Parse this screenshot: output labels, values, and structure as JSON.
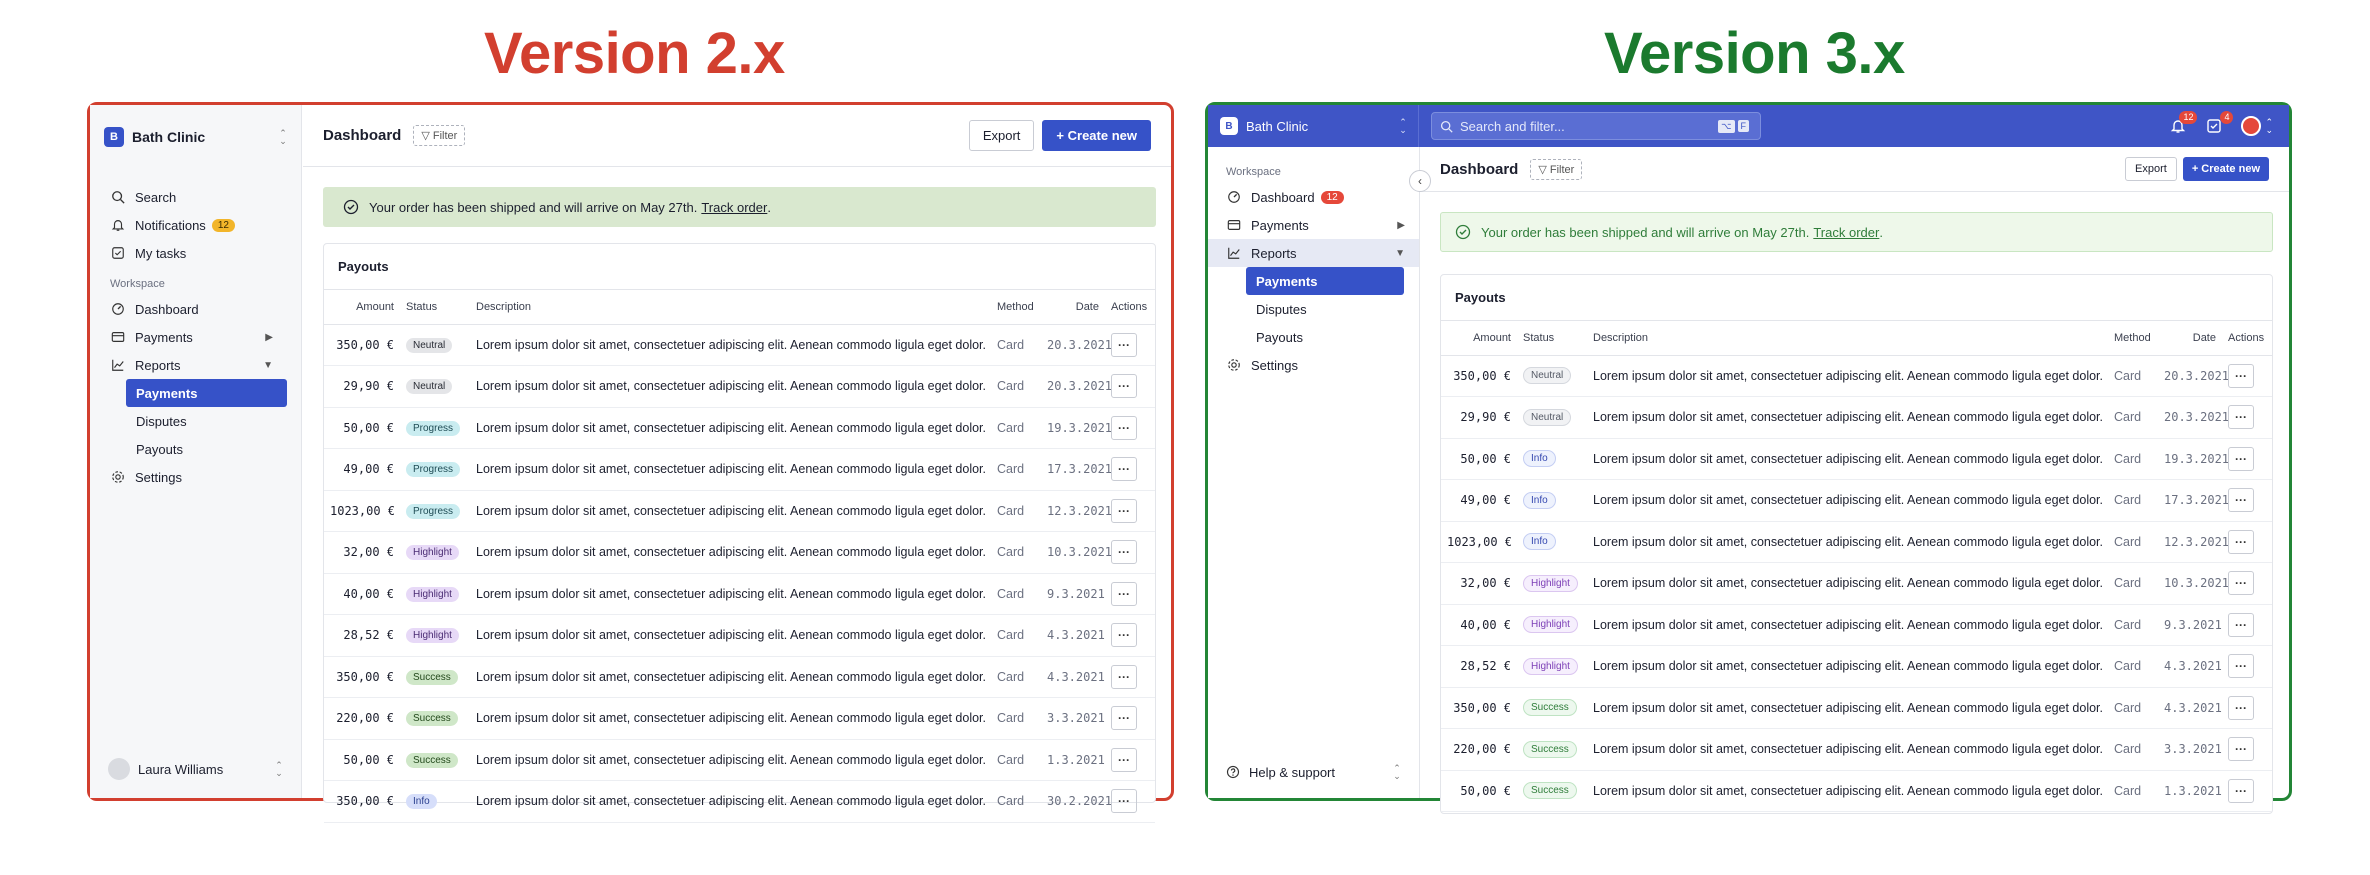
{
  "headings": {
    "v2": "Version 2.x",
    "v3": "Version 3.x"
  },
  "brand": {
    "initial": "B",
    "name": "Bath Clinic"
  },
  "v2": {
    "nav_top": [
      {
        "label": "Search",
        "icon": "search-icon"
      },
      {
        "label": "Notifications",
        "icon": "bell-icon",
        "badge": "12"
      },
      {
        "label": "My tasks",
        "icon": "checkbox-icon"
      }
    ],
    "section": "Workspace",
    "nav": [
      {
        "label": "Dashboard",
        "icon": "dashboard-icon"
      },
      {
        "label": "Payments",
        "icon": "card-icon"
      },
      {
        "label": "Reports",
        "icon": "chart-icon"
      }
    ],
    "sub": [
      "Payments",
      "Disputes",
      "Payouts"
    ],
    "settings": "Settings",
    "user": "Laura Williams",
    "title": "Dashboard",
    "filter": "▽ Filter",
    "export": "Export",
    "create": "+ Create new"
  },
  "v3": {
    "search_placeholder": "Search and filter...",
    "kbd1": "⌥",
    "kbd2": "F",
    "notif_badge": "12",
    "tasks_badge": "4",
    "section": "Workspace",
    "nav": [
      {
        "label": "Dashboard",
        "icon": "dashboard-icon",
        "badge": "12"
      },
      {
        "label": "Payments",
        "icon": "card-icon"
      },
      {
        "label": "Reports",
        "icon": "chart-icon"
      }
    ],
    "sub": [
      "Payments",
      "Disputes",
      "Payouts"
    ],
    "settings": "Settings",
    "help": "Help & support",
    "title": "Dashboard",
    "filter": "▽ Filter",
    "export": "Export",
    "create": "+ Create new"
  },
  "alert": {
    "text": "Your order has been shipped and will arrive on May 27th.",
    "link": "Track order",
    "end": "."
  },
  "table": {
    "title": "Payouts",
    "columns": [
      "Amount",
      "Status",
      "Description",
      "Method",
      "Date",
      "Actions"
    ],
    "description": "Lorem ipsum dolor sit amet, consectetuer adipiscing elit. Aenean commodo ligula eget dolor.",
    "action_label": "···",
    "rows_v2": [
      {
        "amount": "350,00 €",
        "status": "Neutral",
        "method": "Card",
        "date": "20.3.2021"
      },
      {
        "amount": "29,90 €",
        "status": "Neutral",
        "method": "Card",
        "date": "20.3.2021"
      },
      {
        "amount": "50,00 €",
        "status": "Progress",
        "method": "Card",
        "date": "19.3.2021"
      },
      {
        "amount": "49,00 €",
        "status": "Progress",
        "method": "Card",
        "date": "17.3.2021"
      },
      {
        "amount": "1023,00 €",
        "status": "Progress",
        "method": "Card",
        "date": "12.3.2021"
      },
      {
        "amount": "32,00 €",
        "status": "Highlight",
        "method": "Card",
        "date": "10.3.2021"
      },
      {
        "amount": "40,00 €",
        "status": "Highlight",
        "method": "Card",
        "date": "9.3.2021"
      },
      {
        "amount": "28,52 €",
        "status": "Highlight",
        "method": "Card",
        "date": "4.3.2021"
      },
      {
        "amount": "350,00 €",
        "status": "Success",
        "method": "Card",
        "date": "4.3.2021"
      },
      {
        "amount": "220,00 €",
        "status": "Success",
        "method": "Card",
        "date": "3.3.2021"
      },
      {
        "amount": "50,00 €",
        "status": "Success",
        "method": "Card",
        "date": "1.3.2021"
      },
      {
        "amount": "350,00 €",
        "status": "Info",
        "method": "Card",
        "date": "30.2.2021"
      }
    ],
    "rows_v3": [
      {
        "amount": "350,00 €",
        "status": "Neutral",
        "method": "Card",
        "date": "20.3.2021"
      },
      {
        "amount": "29,90 €",
        "status": "Neutral",
        "method": "Card",
        "date": "20.3.2021"
      },
      {
        "amount": "50,00 €",
        "status": "Info",
        "method": "Card",
        "date": "19.3.2021"
      },
      {
        "amount": "49,00 €",
        "status": "Info",
        "method": "Card",
        "date": "17.3.2021"
      },
      {
        "amount": "1023,00 €",
        "status": "Info",
        "method": "Card",
        "date": "12.3.2021"
      },
      {
        "amount": "32,00 €",
        "status": "Highlight",
        "method": "Card",
        "date": "10.3.2021"
      },
      {
        "amount": "40,00 €",
        "status": "Highlight",
        "method": "Card",
        "date": "9.3.2021"
      },
      {
        "amount": "28,52 €",
        "status": "Highlight",
        "method": "Card",
        "date": "4.3.2021"
      },
      {
        "amount": "350,00 €",
        "status": "Success",
        "method": "Card",
        "date": "4.3.2021"
      },
      {
        "amount": "220,00 €",
        "status": "Success",
        "method": "Card",
        "date": "3.3.2021"
      },
      {
        "amount": "50,00 €",
        "status": "Success",
        "method": "Card",
        "date": "1.3.2021"
      }
    ]
  },
  "pill_colors_v2": {
    "Neutral": {
      "bg": "#e4e5e8",
      "fg": "#2a2d36"
    },
    "Progress": {
      "bg": "#c9ecf0",
      "fg": "#1f4c55"
    },
    "Highlight": {
      "bg": "#e7d9f7",
      "fg": "#4a2b73"
    },
    "Success": {
      "bg": "#cfe7c8",
      "fg": "#244a1d"
    },
    "Info": {
      "bg": "#d6defa",
      "fg": "#2a3f8e"
    }
  },
  "pill_colors_v3": {
    "Neutral": {
      "bg": "#f1f2f4",
      "fg": "#555a66",
      "border": "#d5d8de"
    },
    "Info": {
      "bg": "#eef2fd",
      "fg": "#3548b0",
      "border": "#c4cef3"
    },
    "Highlight": {
      "bg": "#f6effd",
      "fg": "#7c3fb6",
      "border": "#dbc6f0"
    },
    "Success": {
      "bg": "#edf8ee",
      "fg": "#2f7d3a",
      "border": "#bfe3c3"
    }
  },
  "colors": {
    "v2_alert_bg": "#d9e8cf",
    "v3_alert_bg": "#eef8ea",
    "v3_alert_fg": "#2f7d3a",
    "accent": "#3652c8"
  }
}
